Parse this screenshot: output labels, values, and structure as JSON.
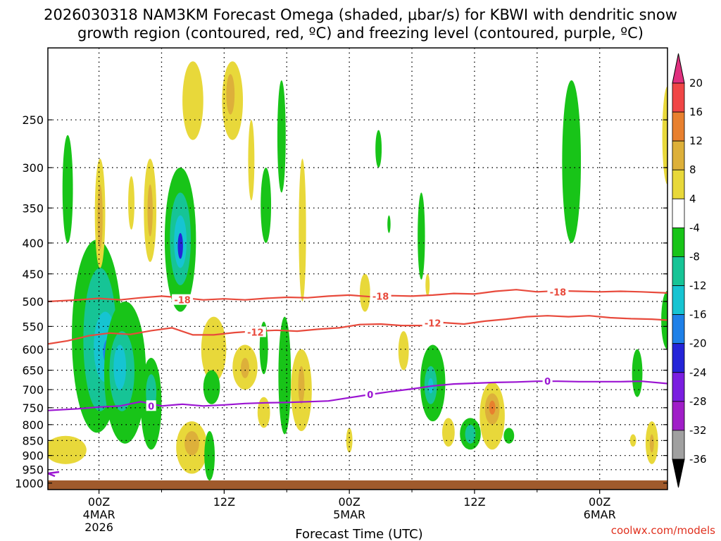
{
  "chart_data": {
    "type": "heatmap",
    "title_line1": "2026030318 NAM3KM Forecast Omega (shaded, μbar/s) for KBWI with dendritic snow",
    "title_line2": "growth region (contoured, red, ºC) and freezing level (contoured, purple, ºC)",
    "xlabel": "Forecast Time (UTC)",
    "credit": "coolwx.com/models",
    "x_range_hours": [
      -4.9,
      54.5
    ],
    "y_range_mb": [
      1025,
      190
    ],
    "y_ticks": [
      250,
      300,
      350,
      400,
      450,
      500,
      550,
      600,
      650,
      700,
      750,
      800,
      850,
      900,
      950,
      1000
    ],
    "x_ticks": [
      {
        "hour": 0,
        "lines": [
          "00Z",
          "4MAR",
          "2026"
        ]
      },
      {
        "hour": 12,
        "lines": [
          "12Z"
        ]
      },
      {
        "hour": 24,
        "lines": [
          "00Z",
          "5MAR"
        ]
      },
      {
        "hour": 36,
        "lines": [
          "12Z"
        ]
      },
      {
        "hour": 48,
        "lines": [
          "00Z",
          "6MAR"
        ]
      }
    ],
    "x_grid_hours": [
      6,
      18,
      30,
      42
    ],
    "colorbar": {
      "tick_labels": [
        "20",
        "16",
        "12",
        "8",
        "4",
        "-4",
        "-8",
        "-12",
        "-16",
        "-20",
        "-24",
        "-28",
        "-32",
        "-36"
      ],
      "bins": [
        {
          "range": [
            16,
            20
          ],
          "color": "#f04646"
        },
        {
          "range": [
            12,
            16
          ],
          "color": "#e8802e"
        },
        {
          "range": [
            8,
            12
          ],
          "color": "#ddb03a"
        },
        {
          "range": [
            4,
            8
          ],
          "color": "#e8d83a"
        },
        {
          "range": [
            -4,
            4
          ],
          "color": "#ffffff"
        },
        {
          "range": [
            -8,
            -4
          ],
          "color": "#18c418"
        },
        {
          "range": [
            -12,
            -8
          ],
          "color": "#16c496"
        },
        {
          "range": [
            -16,
            -12
          ],
          "color": "#16c4d2"
        },
        {
          "range": [
            -20,
            -16
          ],
          "color": "#1e80e8"
        },
        {
          "range": [
            -24,
            -20
          ],
          "color": "#2424d8"
        },
        {
          "range": [
            -28,
            -24
          ],
          "color": "#7a1ee0"
        },
        {
          "range": [
            -32,
            -28
          ],
          "color": "#a01ec8"
        },
        {
          "range": [
            -36,
            -32
          ],
          "color": "#a0a0a0"
        }
      ],
      "over_color": "#e0307e",
      "under_color": "#000000"
    },
    "contours": [
      {
        "name": "dgz-minus-18",
        "label": "-18",
        "color": "#e84a3c",
        "points": [
          [
            -4.9,
            500
          ],
          [
            -2,
            497
          ],
          [
            0,
            494
          ],
          [
            2,
            497
          ],
          [
            4,
            493
          ],
          [
            6,
            490
          ],
          [
            8,
            493
          ],
          [
            10,
            497
          ],
          [
            12,
            495
          ],
          [
            14,
            497
          ],
          [
            16,
            494
          ],
          [
            18,
            492
          ],
          [
            20,
            493
          ],
          [
            22,
            490
          ],
          [
            24,
            488
          ],
          [
            26,
            491
          ],
          [
            28,
            489
          ],
          [
            30,
            490
          ],
          [
            32,
            488
          ],
          [
            34,
            485
          ],
          [
            36,
            486
          ],
          [
            38,
            481
          ],
          [
            40,
            478
          ],
          [
            42,
            482
          ],
          [
            44,
            480
          ],
          [
            46,
            481
          ],
          [
            48,
            482
          ],
          [
            50,
            481
          ],
          [
            52,
            482
          ],
          [
            54.5,
            484
          ]
        ],
        "labels_at": [
          [
            8,
            497
          ],
          [
            27,
            490
          ],
          [
            44,
            482
          ]
        ]
      },
      {
        "name": "dgz-minus-12",
        "label": "-12",
        "color": "#e84a3c",
        "points": [
          [
            -4.9,
            588
          ],
          [
            -3,
            581
          ],
          [
            -1,
            570
          ],
          [
            1,
            564
          ],
          [
            3,
            567
          ],
          [
            5,
            559
          ],
          [
            7,
            553
          ],
          [
            9,
            568
          ],
          [
            11,
            568
          ],
          [
            13,
            563
          ],
          [
            15,
            560
          ],
          [
            17,
            558
          ],
          [
            19,
            560
          ],
          [
            21,
            556
          ],
          [
            23,
            553
          ],
          [
            25,
            546
          ],
          [
            27,
            545
          ],
          [
            29,
            548
          ],
          [
            31,
            548
          ],
          [
            33,
            542
          ],
          [
            35,
            545
          ],
          [
            37,
            539
          ],
          [
            39,
            535
          ],
          [
            41,
            530
          ],
          [
            43,
            528
          ],
          [
            45,
            530
          ],
          [
            47,
            528
          ],
          [
            49,
            532
          ],
          [
            51,
            534
          ],
          [
            53,
            535
          ],
          [
            54.5,
            537
          ]
        ],
        "labels_at": [
          [
            15,
            562
          ],
          [
            32,
            543
          ]
        ]
      },
      {
        "name": "freezing-level",
        "label": "0",
        "color": "#9b14d2",
        "points": [
          [
            -4.9,
            758
          ],
          [
            -2,
            753
          ],
          [
            0,
            748
          ],
          [
            2,
            745
          ],
          [
            4,
            733
          ],
          [
            6,
            745
          ],
          [
            8,
            740
          ],
          [
            10,
            745
          ],
          [
            12,
            742
          ],
          [
            14,
            738
          ],
          [
            16,
            736
          ],
          [
            18,
            735
          ],
          [
            20,
            733
          ],
          [
            22,
            731
          ],
          [
            24,
            722
          ],
          [
            26,
            713
          ],
          [
            28,
            705
          ],
          [
            30,
            698
          ],
          [
            32,
            690
          ],
          [
            34,
            685
          ],
          [
            36,
            683
          ],
          [
            38,
            681
          ],
          [
            40,
            680
          ],
          [
            42,
            678
          ],
          [
            44,
            678
          ],
          [
            46,
            679
          ],
          [
            48,
            679
          ],
          [
            50,
            679
          ],
          [
            52,
            678
          ],
          [
            54.5,
            684
          ]
        ],
        "labels_at": [
          [
            5,
            745
          ],
          [
            26,
            713
          ],
          [
            43,
            678
          ]
        ]
      }
    ],
    "shaded_regions": [
      {
        "name": "omega-pos-left-low",
        "value": 6,
        "cx": -3.2,
        "rx": 2.0,
        "top": 835,
        "bottom": 930
      },
      {
        "name": "omega-neg-early-col",
        "value": -6,
        "cx": -3.0,
        "rx": 0.5,
        "top": 265,
        "bottom": 400
      },
      {
        "name": "omega-neg-big",
        "value": -6,
        "cx": -0.2,
        "rx": 2.4,
        "top": 395,
        "bottom": 825
      },
      {
        "name": "omega-neg-big-2",
        "value": -10,
        "cx": 0.1,
        "rx": 1.6,
        "top": 440,
        "bottom": 760
      },
      {
        "name": "omega-neg-big-3",
        "value": -14,
        "cx": 0.6,
        "rx": 1.1,
        "top": 520,
        "bottom": 680
      },
      {
        "name": "omega-neg-big-core",
        "value": -18,
        "cx": 1.0,
        "rx": 0.6,
        "top": 575,
        "bottom": 640
      },
      {
        "name": "omega-neg-lower",
        "value": -6,
        "cx": 2.5,
        "rx": 2.0,
        "top": 500,
        "bottom": 860
      },
      {
        "name": "omega-neg-lower-2",
        "value": -10,
        "cx": 2.2,
        "rx": 1.2,
        "top": 560,
        "bottom": 760
      },
      {
        "name": "omega-neg-lower-3",
        "value": -14,
        "cx": 2.0,
        "rx": 0.6,
        "top": 590,
        "bottom": 700
      },
      {
        "name": "omega-pos-early-up",
        "value": 6,
        "cx": 0.1,
        "rx": 0.5,
        "top": 290,
        "bottom": 440
      },
      {
        "name": "omega-pos-early-up-core",
        "value": 10,
        "cx": 0.1,
        "rx": 0.25,
        "top": 320,
        "bottom": 410
      },
      {
        "name": "omega-pos-a",
        "value": 6,
        "cx": 3.1,
        "rx": 0.3,
        "top": 310,
        "bottom": 380
      },
      {
        "name": "omega-pos-b",
        "value": 6,
        "cx": 4.9,
        "rx": 0.6,
        "top": 290,
        "bottom": 430
      },
      {
        "name": "omega-pos-b-core",
        "value": 10,
        "cx": 4.9,
        "rx": 0.25,
        "top": 320,
        "bottom": 390
      },
      {
        "name": "omega-neg-mid",
        "value": -6,
        "cx": 5.0,
        "rx": 1.0,
        "top": 620,
        "bottom": 880
      },
      {
        "name": "omega-neg-mid-2",
        "value": -10,
        "cx": 5.0,
        "rx": 0.5,
        "top": 660,
        "bottom": 760
      },
      {
        "name": "omega-pos-upper",
        "value": 6,
        "cx": 9.0,
        "rx": 1.0,
        "top": 200,
        "bottom": 270
      },
      {
        "name": "omega-pos-upper-2",
        "value": 6,
        "cx": 12.8,
        "rx": 1.0,
        "top": 200,
        "bottom": 270
      },
      {
        "name": "omega-pos-upper-2-core",
        "value": 10,
        "cx": 12.6,
        "rx": 0.4,
        "top": 210,
        "bottom": 245
      },
      {
        "name": "omega-pos-col",
        "value": 6,
        "cx": 14.6,
        "rx": 0.3,
        "top": 250,
        "bottom": 340
      },
      {
        "name": "omega-neg-407",
        "value": -6,
        "cx": 7.8,
        "rx": 1.5,
        "top": 300,
        "bottom": 520
      },
      {
        "name": "omega-neg-407-2",
        "value": -10,
        "cx": 7.8,
        "rx": 1.0,
        "top": 330,
        "bottom": 470
      },
      {
        "name": "omega-neg-407-3",
        "value": -14,
        "cx": 7.8,
        "rx": 0.6,
        "top": 360,
        "bottom": 440
      },
      {
        "name": "omega-neg-407-core",
        "value": -22,
        "cx": 7.8,
        "rx": 0.25,
        "top": 385,
        "bottom": 425
      },
      {
        "name": "omega-pos-850",
        "value": 6,
        "cx": 8.9,
        "rx": 1.5,
        "top": 790,
        "bottom": 965
      },
      {
        "name": "omega-pos-850-core",
        "value": 10,
        "cx": 8.9,
        "rx": 0.7,
        "top": 820,
        "bottom": 900
      },
      {
        "name": "omega-neg-850",
        "value": -6,
        "cx": 10.6,
        "rx": 0.5,
        "top": 820,
        "bottom": 990
      },
      {
        "name": "omega-pos-550",
        "value": 6,
        "cx": 11.0,
        "rx": 1.2,
        "top": 530,
        "bottom": 680
      },
      {
        "name": "omega-neg-700",
        "value": -6,
        "cx": 10.8,
        "rx": 0.8,
        "top": 650,
        "bottom": 740
      },
      {
        "name": "omega-pos-650",
        "value": 6,
        "cx": 14.0,
        "rx": 1.2,
        "top": 590,
        "bottom": 700
      },
      {
        "name": "omega-pos-650-core",
        "value": 10,
        "cx": 14.0,
        "rx": 0.4,
        "top": 620,
        "bottom": 670
      },
      {
        "name": "omega-neg-col-1",
        "value": -6,
        "cx": 16.0,
        "rx": 0.5,
        "top": 300,
        "bottom": 400
      },
      {
        "name": "omega-neg-col-2",
        "value": -6,
        "cx": 17.5,
        "rx": 0.4,
        "top": 215,
        "bottom": 330
      },
      {
        "name": "omega-pos-col-3",
        "value": 6,
        "cx": 19.5,
        "rx": 0.35,
        "top": 290,
        "bottom": 500
      },
      {
        "name": "omega-neg-550s",
        "value": -6,
        "cx": 17.8,
        "rx": 0.6,
        "top": 530,
        "bottom": 830
      },
      {
        "name": "omega-pos-720",
        "value": 6,
        "cx": 19.4,
        "rx": 1.0,
        "top": 600,
        "bottom": 820
      },
      {
        "name": "omega-pos-720-core",
        "value": 10,
        "cx": 19.4,
        "rx": 0.3,
        "top": 640,
        "bottom": 740
      },
      {
        "name": "omega-neg-580",
        "value": -6,
        "cx": 15.8,
        "rx": 0.4,
        "top": 540,
        "bottom": 660
      },
      {
        "name": "omega-pos-750",
        "value": 6,
        "cx": 15.8,
        "rx": 0.6,
        "top": 720,
        "bottom": 810
      },
      {
        "name": "omega-pos-850-b",
        "value": 6,
        "cx": 24.0,
        "rx": 0.3,
        "top": 810,
        "bottom": 890
      },
      {
        "name": "omega-neg-270",
        "value": -6,
        "cx": 26.8,
        "rx": 0.3,
        "top": 260,
        "bottom": 300
      },
      {
        "name": "omega-neg-370",
        "value": -6,
        "cx": 27.8,
        "rx": 0.15,
        "top": 360,
        "bottom": 385
      },
      {
        "name": "omega-pos-480",
        "value": 6,
        "cx": 25.5,
        "rx": 0.5,
        "top": 450,
        "bottom": 520
      },
      {
        "name": "omega-pos-600",
        "value": 6,
        "cx": 29.2,
        "rx": 0.5,
        "top": 560,
        "bottom": 650
      },
      {
        "name": "omega-neg-380",
        "value": -6,
        "cx": 30.9,
        "rx": 0.35,
        "top": 330,
        "bottom": 460
      },
      {
        "name": "omega-pos-460",
        "value": 6,
        "cx": 31.5,
        "rx": 0.2,
        "top": 450,
        "bottom": 490
      },
      {
        "name": "omega-neg-700b",
        "value": -6,
        "cx": 32.0,
        "rx": 1.2,
        "top": 590,
        "bottom": 790
      },
      {
        "name": "omega-neg-700b-2",
        "value": -10,
        "cx": 31.8,
        "rx": 0.6,
        "top": 640,
        "bottom": 740
      },
      {
        "name": "omega-neg-700b-3",
        "value": -14,
        "cx": 31.8,
        "rx": 0.25,
        "top": 670,
        "bottom": 710
      },
      {
        "name": "omega-pos-820",
        "value": 6,
        "cx": 33.5,
        "rx": 0.6,
        "top": 780,
        "bottom": 870
      },
      {
        "name": "omega-neg-830",
        "value": -6,
        "cx": 35.6,
        "rx": 1.0,
        "top": 780,
        "bottom": 880
      },
      {
        "name": "omega-neg-830-2",
        "value": -10,
        "cx": 35.6,
        "rx": 0.5,
        "top": 800,
        "bottom": 860
      },
      {
        "name": "omega-pos-750b",
        "value": 6,
        "cx": 37.7,
        "rx": 1.2,
        "top": 680,
        "bottom": 880
      },
      {
        "name": "omega-pos-750b-2",
        "value": 10,
        "cx": 37.7,
        "rx": 0.7,
        "top": 710,
        "bottom": 800
      },
      {
        "name": "omega-pos-750b-core",
        "value": 14,
        "cx": 37.7,
        "rx": 0.3,
        "top": 730,
        "bottom": 770
      },
      {
        "name": "omega-neg-820b",
        "value": -6,
        "cx": 39.3,
        "rx": 0.5,
        "top": 810,
        "bottom": 860
      },
      {
        "name": "omega-neg-upper-right",
        "value": -6,
        "cx": 45.3,
        "rx": 0.9,
        "top": 215,
        "bottom": 400
      },
      {
        "name": "omega-neg-640",
        "value": -6,
        "cx": 51.6,
        "rx": 0.5,
        "top": 600,
        "bottom": 720
      },
      {
        "name": "omega-pos-850c",
        "value": 6,
        "cx": 51.2,
        "rx": 0.3,
        "top": 830,
        "bottom": 870
      },
      {
        "name": "omega-pos-850d",
        "value": 6,
        "cx": 53.0,
        "rx": 0.6,
        "top": 790,
        "bottom": 930
      },
      {
        "name": "omega-pos-850d-core",
        "value": 10,
        "cx": 53.0,
        "rx": 0.2,
        "top": 830,
        "bottom": 890
      },
      {
        "name": "omega-neg-right-edge",
        "value": -6,
        "cx": 54.5,
        "rx": 0.6,
        "top": 480,
        "bottom": 600
      },
      {
        "name": "omega-pos-right-top",
        "value": 6,
        "cx": 54.5,
        "rx": 0.5,
        "top": 220,
        "bottom": 320
      }
    ]
  }
}
